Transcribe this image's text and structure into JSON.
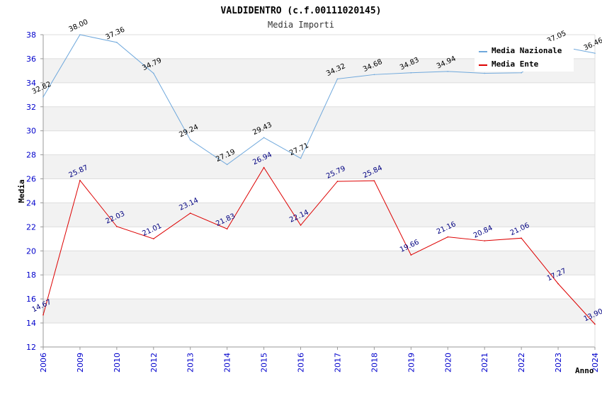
{
  "chart_data": {
    "type": "line",
    "title": "VALDIDENTRO (c.f.00111020145)",
    "subtitle": "Media Importi",
    "xlabel": "Anno",
    "ylabel": "Media",
    "ylim": [
      12,
      38
    ],
    "yticks": [
      12,
      14,
      16,
      18,
      20,
      22,
      24,
      26,
      28,
      30,
      32,
      34,
      36,
      38
    ],
    "categories": [
      "2006",
      "2009",
      "2010",
      "2012",
      "2013",
      "2014",
      "2015",
      "2016",
      "2017",
      "2018",
      "2019",
      "2020",
      "2021",
      "2022",
      "2023",
      "2024"
    ],
    "series": [
      {
        "name": "Media Nazionale",
        "color": "#6fa8dc",
        "values": [
          32.82,
          38.0,
          37.36,
          34.79,
          29.24,
          27.19,
          29.43,
          27.71,
          34.32,
          34.68,
          34.83,
          34.94,
          34.79,
          34.83,
          37.05,
          36.46
        ],
        "labels": [
          "32.82",
          "38.00",
          "37.36",
          "34.79",
          "29.24",
          "27.19",
          "29.43",
          "27.71",
          "34.32",
          "34.68",
          "34.83",
          "34.94",
          "",
          "",
          "37.05",
          "36.46"
        ]
      },
      {
        "name": "Media Ente",
        "color": "#dd0000",
        "values": [
          14.67,
          25.87,
          22.03,
          21.01,
          23.14,
          21.83,
          26.94,
          22.14,
          25.79,
          25.84,
          19.66,
          21.16,
          20.84,
          21.06,
          17.27,
          13.9
        ],
        "labels": [
          "14.67",
          "25.87",
          "22.03",
          "21.01",
          "23.14",
          "21.83",
          "26.94",
          "22.14",
          "25.79",
          "25.84",
          "19.66",
          "21.16",
          "20.84",
          "21.06",
          "17.27",
          "13.90"
        ]
      }
    ],
    "grid": true,
    "legend": "top-right"
  }
}
